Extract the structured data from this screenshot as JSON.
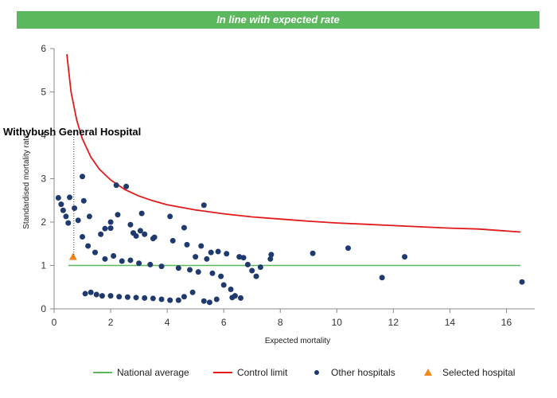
{
  "banner": {
    "text": "In line with expected rate",
    "color": "#5cb85c"
  },
  "chart_data": {
    "type": "scatter",
    "xlabel": "Expected mortality",
    "ylabel": "Standardised mortality rate",
    "xlim": [
      0,
      17
    ],
    "ylim": [
      0,
      6
    ],
    "x_ticks": [
      0,
      2,
      4,
      6,
      8,
      10,
      12,
      14,
      16
    ],
    "y_ticks": [
      0,
      1,
      2,
      3,
      4,
      5,
      6
    ],
    "grid": false,
    "legend_position": "bottom",
    "selected_label": "Withybush General Hospital",
    "series": [
      {
        "name": "National average",
        "kind": "line",
        "color": "#5cb85c",
        "x": [
          0.5,
          16.5
        ],
        "y": [
          1,
          1
        ]
      },
      {
        "name": "Control limit",
        "kind": "line",
        "color": "#e31a1c",
        "x": [
          0.45,
          0.6,
          0.8,
          1,
          1.3,
          1.6,
          2,
          2.5,
          3,
          3.5,
          4,
          5,
          6,
          7,
          8,
          9,
          10,
          11,
          12,
          13,
          14,
          15,
          16.5
        ],
        "y": [
          5.87,
          5.0,
          4.35,
          3.92,
          3.5,
          3.22,
          2.97,
          2.75,
          2.6,
          2.49,
          2.4,
          2.28,
          2.19,
          2.12,
          2.07,
          2.02,
          1.98,
          1.95,
          1.92,
          1.89,
          1.86,
          1.84,
          1.77
        ]
      },
      {
        "name": "Other hospitals",
        "kind": "scatter",
        "color": "#1f3a6e",
        "x": [
          0.15,
          0.25,
          0.32,
          0.42,
          0.55,
          0.72,
          1.0,
          1.05,
          2.2,
          2.55,
          5.3,
          1.25,
          1.65,
          2.0,
          2.25,
          3.1,
          3.55,
          4.1,
          4.6,
          0.5,
          1.8,
          2.0,
          2.7,
          2.8,
          2.9,
          3.05,
          3.2,
          3.5,
          4.2,
          4.7,
          5.0,
          5.2,
          5.4,
          5.55,
          5.8,
          6.1,
          6.25,
          6.55,
          6.7,
          6.85,
          7.0,
          7.15,
          7.3,
          7.65,
          7.68,
          9.15,
          10.4,
          12.4,
          11.6,
          16.55,
          0.85,
          1.0,
          1.2,
          1.45,
          1.8,
          2.1,
          2.4,
          2.7,
          3.0,
          3.4,
          3.8,
          4.4,
          4.8,
          5.1,
          5.6,
          5.9,
          6.0,
          6.4,
          1.1,
          1.3,
          1.5,
          1.7,
          2.0,
          2.3,
          2.6,
          2.9,
          3.2,
          3.5,
          3.8,
          4.1,
          4.4,
          4.6,
          4.9,
          5.3,
          5.5,
          5.75,
          6.3,
          6.6
        ],
        "y": [
          2.56,
          2.41,
          2.27,
          2.13,
          2.57,
          2.32,
          3.05,
          2.49,
          2.85,
          2.82,
          2.39,
          2.13,
          1.72,
          2.0,
          2.17,
          2.2,
          1.65,
          2.13,
          1.87,
          1.98,
          1.85,
          1.86,
          1.94,
          1.75,
          1.68,
          1.8,
          1.72,
          1.62,
          1.57,
          1.48,
          1.2,
          1.45,
          1.15,
          1.3,
          1.32,
          1.27,
          0.45,
          1.2,
          1.18,
          1.02,
          0.88,
          0.75,
          0.96,
          1.15,
          1.25,
          1.28,
          1.4,
          1.2,
          0.72,
          0.62,
          2.04,
          1.66,
          1.45,
          1.3,
          1.15,
          1.22,
          1.1,
          1.12,
          1.05,
          1.02,
          0.98,
          0.94,
          0.9,
          0.85,
          0.82,
          0.75,
          0.55,
          0.3,
          0.35,
          0.38,
          0.33,
          0.3,
          0.3,
          0.28,
          0.27,
          0.26,
          0.25,
          0.24,
          0.22,
          0.2,
          0.2,
          0.28,
          0.38,
          0.18,
          0.15,
          0.22,
          0.26,
          0.25
        ]
      },
      {
        "name": "Selected hospital",
        "kind": "scatter",
        "color": "#f0891a",
        "x": [
          0.67
        ],
        "y": [
          1.2
        ]
      }
    ]
  }
}
